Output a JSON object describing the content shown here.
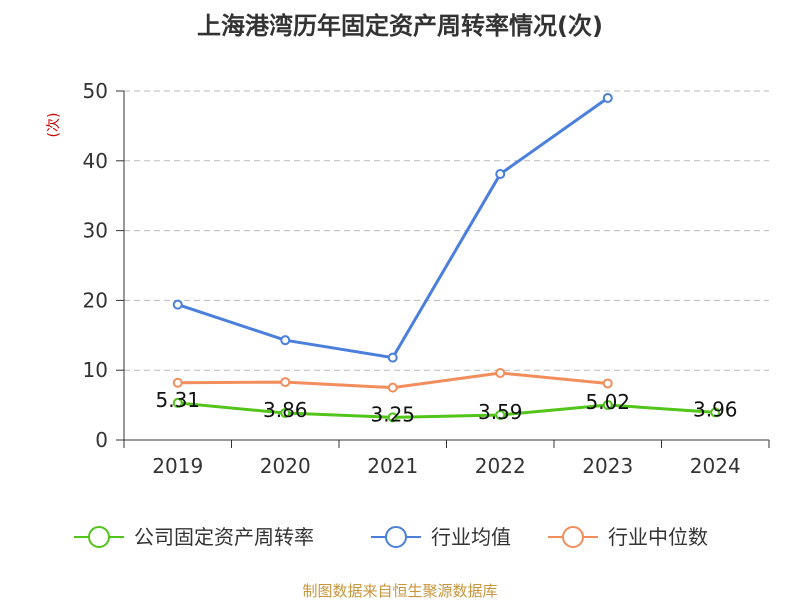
{
  "chart_data": {
    "type": "line",
    "title": "上海港湾历年固定资产周转率情况(次)",
    "ylabel": "(次)",
    "xlabel": "",
    "categories": [
      "2019",
      "2020",
      "2021",
      "2022",
      "2023",
      "2024"
    ],
    "ylim": [
      0,
      50
    ],
    "yticks": [
      0,
      10,
      20,
      30,
      40,
      50
    ],
    "grid": true,
    "legend_position": "bottom",
    "series": [
      {
        "name": "公司固定资产周转率",
        "color": "#52c41a",
        "values": [
          5.31,
          3.86,
          3.25,
          3.59,
          5.02,
          3.96
        ],
        "labels": [
          "5.31",
          "3.86",
          "3.25",
          "3.59",
          "5.02",
          "3.96"
        ]
      },
      {
        "name": "行业均值",
        "color": "#4a7fdc",
        "values": [
          19.4,
          14.3,
          11.8,
          38.1,
          49.0,
          null
        ]
      },
      {
        "name": "行业中位数",
        "color": "#f28e5c",
        "values": [
          8.2,
          8.3,
          7.5,
          9.6,
          8.1,
          null
        ]
      }
    ]
  },
  "footer": "制图数据来自恒生聚源数据库"
}
